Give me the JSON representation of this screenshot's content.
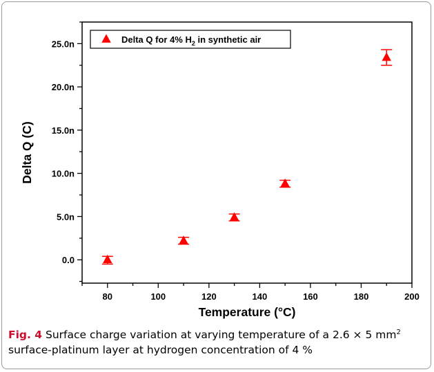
{
  "chart_data": {
    "type": "scatter",
    "xlabel": "Temperature (°C)",
    "ylabel": "Delta Q (C)",
    "xlim": [
      70,
      200
    ],
    "ylim": [
      -2.7,
      27.5
    ],
    "x_ticks": [
      80,
      100,
      120,
      140,
      160,
      180,
      200
    ],
    "x_tick_labels": [
      "80",
      "100",
      "120",
      "140",
      "160",
      "180",
      "200"
    ],
    "y_ticks": [
      0,
      5,
      10,
      15,
      20,
      25
    ],
    "y_tick_labels": [
      "0.0",
      "5.0n",
      "10.0n",
      "15.0n",
      "20.0n",
      "25.0n"
    ],
    "y_unit_scale": "n (1e-9)",
    "grid": false,
    "legend_position": "top-left",
    "series": [
      {
        "name_text": "Delta Q for 4% H",
        "name_subscript": "2",
        "name_suffix": " in synthetic air",
        "marker": "triangle",
        "color": "#ff0000",
        "x": [
          80,
          110,
          130,
          150,
          190
        ],
        "y": [
          0.0,
          2.2,
          4.9,
          8.8,
          23.4
        ],
        "err_low": [
          0.5,
          0.4,
          0.4,
          0.4,
          0.9
        ],
        "err_high": [
          0.4,
          0.4,
          0.4,
          0.4,
          0.9
        ]
      }
    ]
  },
  "caption": {
    "label": "Fig. 4",
    "text_part1": " Surface charge variation at varying temperature of a 2.6 × 5 mm",
    "superscript": "2",
    "text_part2": " surface-platinum layer at hydrogen concentration of 4 %"
  }
}
